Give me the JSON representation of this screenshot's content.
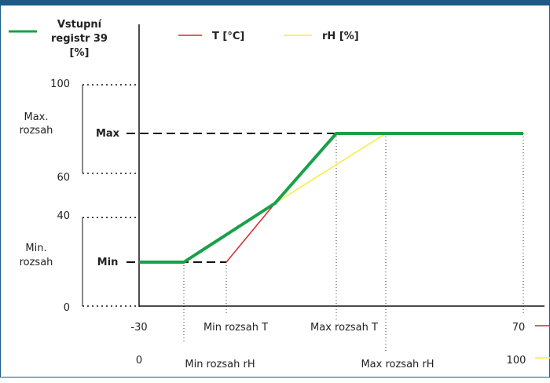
{
  "chart_data": {
    "type": "line",
    "y_axis_title": [
      "Vstupní",
      "registr 39",
      "[%]"
    ],
    "legend": [
      {
        "label": "T [°C]",
        "color": "#d42a2a"
      },
      {
        "label": "rH [%]",
        "color": "#f5ef3a"
      }
    ],
    "output_series": {
      "color": "#1aa04a"
    },
    "y_ticks": [
      "100",
      "60",
      "40",
      "0"
    ],
    "y_markers": [
      "Max",
      "Min"
    ],
    "y_range_labels": {
      "max": [
        "Max.",
        "rozsah"
      ],
      "min": [
        "Min.",
        "rozsah"
      ]
    },
    "x_axis_T": {
      "start": "-30",
      "end": "70",
      "min_label": "Min rozsah T",
      "max_label": "Max rozsah T",
      "color": "#d42a2a"
    },
    "x_axis_rH": {
      "start": "0",
      "end": "100",
      "min_label": "Min rozsah rH",
      "max_label": "Max rozsah rH",
      "color": "#f5ef3a"
    },
    "grid": false
  }
}
